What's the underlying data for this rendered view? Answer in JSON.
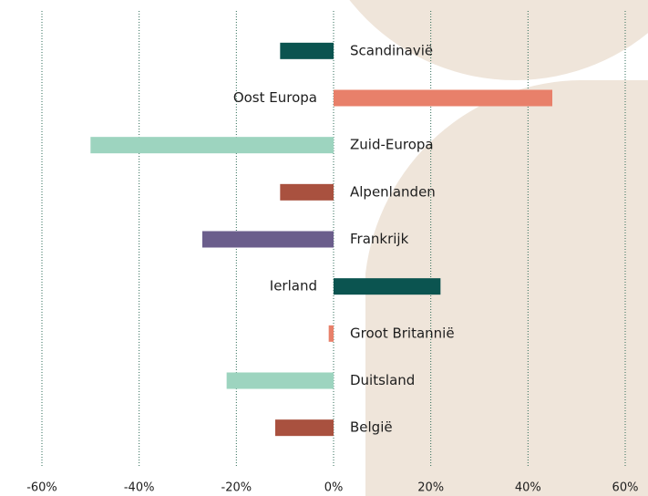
{
  "chart_data": {
    "type": "barh",
    "categories": [
      "Scandinavië",
      "Oost Europa",
      "Zuid-Europa",
      "Alpenlanden",
      "Frankrijk",
      "Ierland",
      "Groot Britannië",
      "Duitsland",
      "België"
    ],
    "values": [
      -11,
      45,
      -50,
      -11,
      -27,
      22,
      -1,
      -22,
      -12
    ],
    "colors": [
      "#0b5450",
      "#e8806a",
      "#9dd4bf",
      "#a9513f",
      "#6b5e8c",
      "#0b5450",
      "#e8806a",
      "#9dd4bf",
      "#a9513f"
    ],
    "xlim": [
      -60,
      60
    ],
    "xticks": [
      {
        "value": -60,
        "label": "-60%"
      },
      {
        "value": -40,
        "label": "-40%"
      },
      {
        "value": -20,
        "label": "-20%"
      },
      {
        "value": 0,
        "label": "0%"
      },
      {
        "value": 20,
        "label": "20%"
      },
      {
        "value": 40,
        "label": "40%"
      },
      {
        "value": 60,
        "label": "60%"
      }
    ],
    "grid": true
  }
}
